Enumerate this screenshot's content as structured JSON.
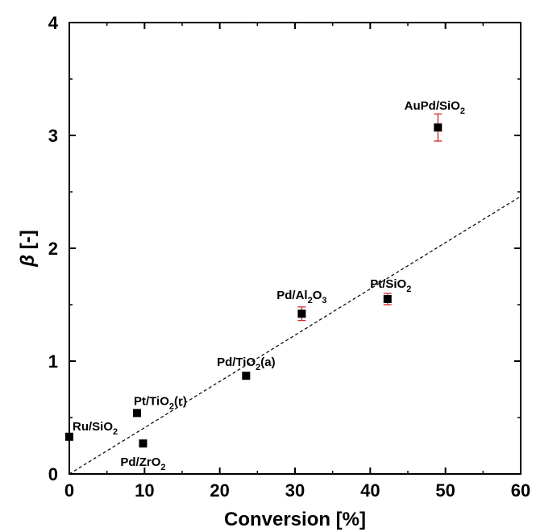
{
  "chart_data": {
    "type": "scatter",
    "xlabel": "Conversion [%]",
    "ylabel_symbol": "β",
    "ylabel_unit": " [-]",
    "xlim": [
      0,
      60
    ],
    "ylim": [
      0,
      4
    ],
    "x_ticks": [
      0,
      10,
      20,
      30,
      40,
      50,
      60
    ],
    "y_ticks": [
      0,
      1,
      2,
      3,
      4
    ],
    "grid": false,
    "points": [
      {
        "base": "Ru/SiO",
        "sub": "2",
        "tail": "",
        "x": 0.0,
        "y": 0.33,
        "err": 0
      },
      {
        "base": "Pt/TiO",
        "sub": "2",
        "tail": "(r)",
        "x": 9.0,
        "y": 0.54,
        "err": 0
      },
      {
        "base": "Pd/ZrO",
        "sub": "2",
        "tail": "",
        "x": 9.8,
        "y": 0.27,
        "err": 0
      },
      {
        "base": "Pd/TiO",
        "sub": "2",
        "tail": "(a)",
        "x": 23.5,
        "y": 0.87,
        "err": 0
      },
      {
        "base": "Pd/Al",
        "sub": "2",
        "mid": "O",
        "sub2": "3",
        "tail": "",
        "x": 30.9,
        "y": 1.42,
        "err": 0.06
      },
      {
        "base": "Pt/SiO",
        "sub": "2",
        "tail": "",
        "x": 42.3,
        "y": 1.55,
        "err": 0.05
      },
      {
        "base": "AuPd/SiO",
        "sub": "2",
        "tail": "",
        "x": 49.0,
        "y": 3.07,
        "err": 0.12
      }
    ],
    "fit_line": {
      "x": [
        0,
        60
      ],
      "y": [
        0,
        2.46
      ],
      "style": "dashed"
    },
    "marker_color": "#000000",
    "error_bar_color": "#d62728"
  }
}
